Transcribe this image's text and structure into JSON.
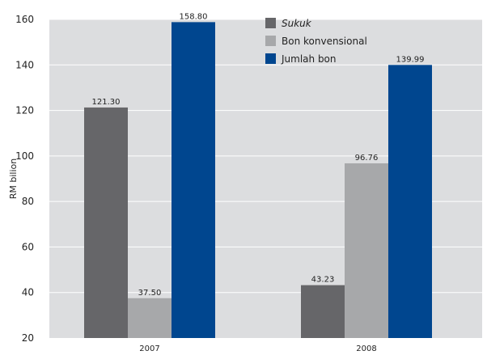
{
  "chart_data": {
    "type": "bar",
    "categories": [
      "2007",
      "2008"
    ],
    "series": [
      {
        "name": "Sukuk",
        "values": [
          121.3,
          43.23
        ],
        "color": "#666669"
      },
      {
        "name": "Bon konvensional",
        "values": [
          37.5,
          96.76
        ],
        "color": "#a7a8aa"
      },
      {
        "name": "Jumlah bon",
        "values": [
          158.8,
          139.99
        ],
        "color": "#00468f"
      }
    ],
    "data_labels": [
      [
        "121.30",
        "43.23"
      ],
      [
        "37.50",
        "96.76"
      ],
      [
        "158.80",
        "139.99"
      ]
    ],
    "ylabel": "RM bilion",
    "ylim": [
      20,
      160
    ],
    "yticks": [
      20,
      40,
      60,
      80,
      100,
      120,
      140,
      160
    ],
    "ytick_labels": [
      "20",
      "40",
      "60",
      "80",
      "100",
      "120",
      "140",
      "160"
    ],
    "grid": true,
    "legend_position": "top-center",
    "plot_background": "#dcdddf",
    "grid_color": "#ffffff"
  }
}
